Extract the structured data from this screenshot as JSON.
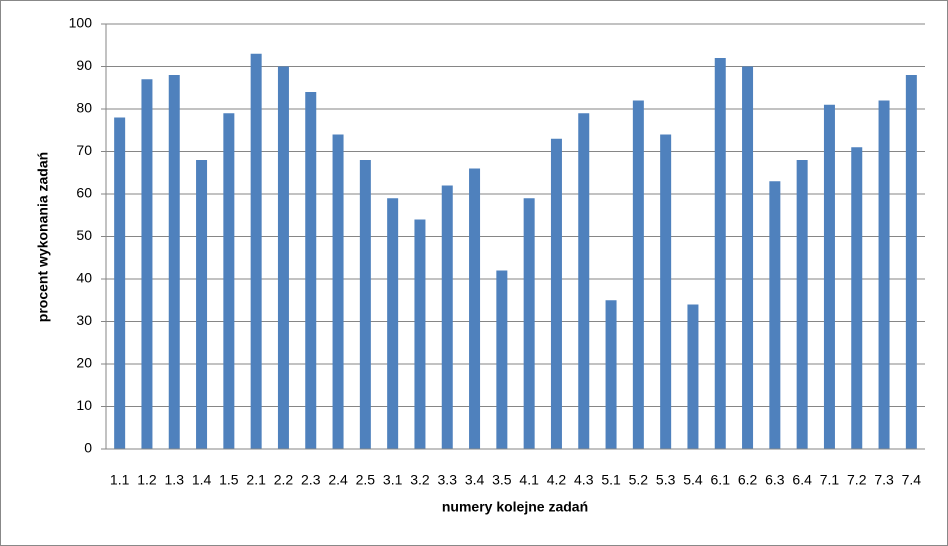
{
  "chart_data": {
    "type": "bar",
    "x_label": "numery kolejne zadań",
    "y_label": "procent wykonania zadań",
    "categories": [
      "1.1",
      "1.2",
      "1.3",
      "1.4",
      "1.5",
      "2.1",
      "2.2",
      "2.3",
      "2.4",
      "2.5",
      "3.1",
      "3.2",
      "3.3",
      "3.4",
      "3.5",
      "4.1",
      "4.2",
      "4.3",
      "5.1",
      "5.2",
      "5.3",
      "5.4",
      "6.1",
      "6.2",
      "6.3",
      "6.4",
      "7.1",
      "7.2",
      "7.3",
      "7.4"
    ],
    "values": [
      78,
      87,
      88,
      68,
      79,
      93,
      90,
      84,
      74,
      68,
      59,
      54,
      62,
      66,
      42,
      59,
      73,
      79,
      35,
      82,
      74,
      34,
      92,
      90,
      63,
      68,
      81,
      71,
      82,
      88
    ],
    "color": "#4f81bd",
    "ylim": [
      0,
      100
    ],
    "yticks": [
      0,
      10,
      20,
      30,
      40,
      50,
      60,
      70,
      80,
      90,
      100
    ],
    "grid": true
  }
}
